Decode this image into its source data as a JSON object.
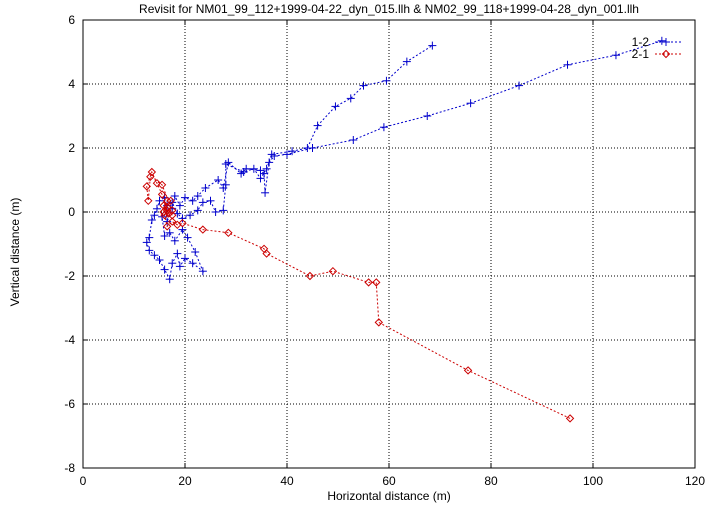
{
  "chart_data": {
    "type": "scatter",
    "title": "Revisit for NM01_99_112+1999-04-22_dyn_015.llh & NM02_99_118+1999-04-28_dyn_001.llh",
    "xlabel": "Horizontal distance (m)",
    "ylabel": "Vertical distance (m)",
    "xlim": [
      0,
      120
    ],
    "ylim": [
      -8,
      6
    ],
    "xticks": [
      0,
      20,
      40,
      60,
      80,
      100,
      120
    ],
    "yticks": [
      -8,
      -6,
      -4,
      -2,
      0,
      2,
      4,
      6
    ],
    "x_tick_labels": [
      "0",
      "20",
      "40",
      "60",
      "80",
      "100",
      "120"
    ],
    "y_tick_labels": [
      "-8",
      "-6",
      "-4",
      "-2",
      "0",
      "2",
      "4",
      "6"
    ],
    "grid": true,
    "legend_position": "top-right",
    "series": [
      {
        "name": "1-2",
        "color": "#0000cc",
        "marker": "plus",
        "line": "dashed",
        "points": [
          [
            113.5,
            5.35
          ],
          [
            104.5,
            4.9
          ],
          [
            95,
            4.6
          ],
          [
            85.5,
            3.95
          ],
          [
            76,
            3.4
          ],
          [
            67.5,
            3.0
          ],
          [
            59,
            2.65
          ],
          [
            53,
            2.25
          ],
          [
            45,
            2.0
          ],
          [
            40,
            1.8
          ],
          [
            37.5,
            1.75
          ],
          [
            36.5,
            1.55
          ],
          [
            35.7,
            0.6
          ],
          [
            35.5,
            1.2
          ],
          [
            34.8,
            1.3
          ],
          [
            32,
            1.35
          ],
          [
            31,
            1.2
          ],
          [
            28.5,
            1.55
          ],
          [
            27.5,
            0.75
          ],
          [
            26.5,
            1.0
          ],
          [
            24,
            0.75
          ],
          [
            22.5,
            0.5
          ],
          [
            21.5,
            0.35
          ],
          [
            20,
            0.45
          ],
          [
            19,
            0.2
          ],
          [
            18,
            0.5
          ],
          [
            17.5,
            0.1
          ],
          [
            16.5,
            -0.3
          ],
          [
            16,
            0.45
          ],
          [
            15,
            0.35
          ],
          [
            14.5,
            0.1
          ],
          [
            14,
            -0.1
          ],
          [
            13.5,
            -0.25
          ],
          [
            13,
            -0.8
          ],
          [
            12.5,
            -0.95
          ],
          [
            13,
            -1.2
          ],
          [
            14,
            -1.35
          ],
          [
            15,
            -1.5
          ],
          [
            16,
            -1.8
          ],
          [
            17,
            -2.1
          ],
          [
            17.5,
            -1.6
          ],
          [
            18.5,
            -1.3
          ],
          [
            19,
            -1.7
          ],
          [
            20,
            -1.45
          ],
          [
            21.5,
            -1.6
          ],
          [
            23.5,
            -1.85
          ],
          [
            22,
            -1.25
          ],
          [
            20.5,
            -0.8
          ],
          [
            19.5,
            -0.55
          ],
          [
            18,
            -0.9
          ],
          [
            17,
            -0.65
          ],
          [
            16,
            -0.75
          ],
          [
            15.5,
            -0.15
          ],
          [
            16.5,
            0.2
          ],
          [
            17.5,
            0.3
          ],
          [
            18.5,
            -0.05
          ],
          [
            19.5,
            -0.2
          ],
          [
            21,
            -0.1
          ],
          [
            22.5,
            0.05
          ],
          [
            23.5,
            0.3
          ],
          [
            25,
            0.35
          ],
          [
            26,
            0.0
          ],
          [
            27.5,
            0.05
          ],
          [
            28,
            0.85
          ],
          [
            28,
            1.5
          ],
          [
            31.5,
            1.25
          ],
          [
            33.5,
            1.35
          ],
          [
            34.8,
            1.05
          ],
          [
            36,
            1.35
          ],
          [
            37,
            1.8
          ],
          [
            41,
            1.9
          ],
          [
            44,
            2.0
          ],
          [
            46,
            2.7
          ],
          [
            49.5,
            3.3
          ],
          [
            52.5,
            3.55
          ],
          [
            55,
            3.95
          ],
          [
            59.5,
            4.1
          ],
          [
            63.5,
            4.7
          ],
          [
            68.5,
            5.2
          ]
        ]
      },
      {
        "name": "2-1",
        "color": "#cc0000",
        "marker": "diamond",
        "line": "dashed",
        "points": [
          [
            95.5,
            -6.45
          ],
          [
            75.5,
            -4.95
          ],
          [
            58,
            -3.45
          ],
          [
            57.5,
            -2.2
          ],
          [
            56,
            -2.2
          ],
          [
            49,
            -1.85
          ],
          [
            44.5,
            -2.0
          ],
          [
            36,
            -1.3
          ],
          [
            35.5,
            -1.15
          ],
          [
            28.5,
            -0.65
          ],
          [
            23.5,
            -0.55
          ],
          [
            19.5,
            -0.35
          ],
          [
            18.5,
            -0.4
          ],
          [
            17.5,
            -0.3
          ],
          [
            16.5,
            -0.45
          ],
          [
            16,
            -0.1
          ],
          [
            15.8,
            0.0
          ],
          [
            16.5,
            0.15
          ],
          [
            17.2,
            0.35
          ],
          [
            16.5,
            0.35
          ],
          [
            15.8,
            0.2
          ],
          [
            16.8,
            -0.05
          ],
          [
            17.5,
            -0.1
          ],
          [
            16.5,
            0.05
          ],
          [
            15.5,
            0.55
          ],
          [
            14.5,
            0.9
          ],
          [
            13.5,
            1.25
          ],
          [
            12.5,
            0.8
          ],
          [
            12.8,
            0.35
          ],
          [
            13.2,
            1.1
          ],
          [
            15.5,
            0.85
          ],
          [
            17.5,
            0.05
          ]
        ]
      }
    ]
  }
}
